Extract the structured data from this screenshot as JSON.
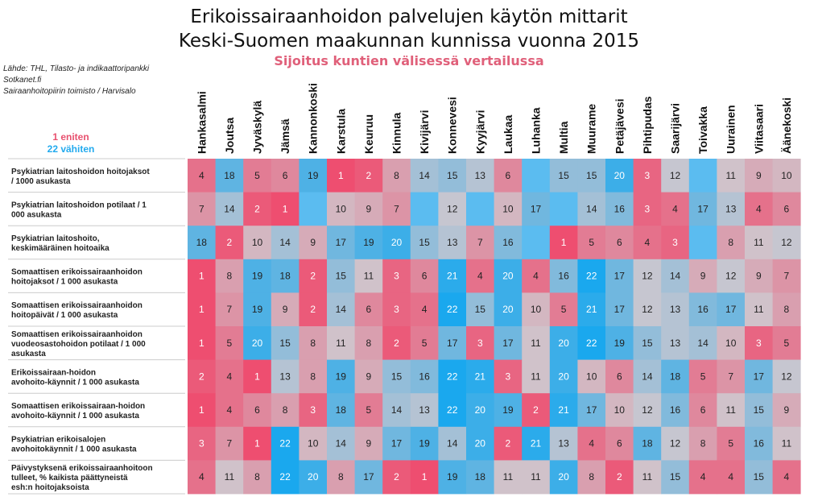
{
  "header": {
    "title_line1": "Erikoissairaanhoidon palvelujen käytön mittarit",
    "title_line2": "Keski-Suomen maakunnan kunnissa vuonna 2015",
    "subtitle": "Sijoitus kuntien välisessä vertailussa"
  },
  "source": {
    "line1": "Lähde: THL, Tilasto- ja indikaattoripankki",
    "line2": "Sotkanet.fi",
    "line3": "Sairaanhoitopiirin toimisto / Harvisalo"
  },
  "legend": {
    "most": "1 eniten",
    "least": "22 vähiten",
    "most_color": "#e8506e",
    "least_color": "#22aaee"
  },
  "chart_data": {
    "type": "heatmap",
    "columns": [
      "Hankasalmi",
      "Joutsa",
      "Jyväskylä",
      "Jämsä",
      "Kannonkoski",
      "Karstula",
      "Keuruu",
      "Kinnula",
      "Kivijärvi",
      "Konnevesi",
      "Kyyjärvi",
      "Laukaa",
      "Luhanka",
      "Multia",
      "Muurame",
      "Petäjävesi",
      "Pihtipudas",
      "Saarijärvi",
      "Toivakka",
      "Uurainen",
      "Viitasaari",
      "Äänekoski"
    ],
    "rows": [
      "Psykiatrian laitoshoidon hoitojaksot / 1000 asukasta",
      "Psykiatrian laitoshoidon potilaat / 1 000 asukasta",
      "Psykiatrian laitoshoito, keskimääräinen hoitoaika",
      "Somaattisen erikoissairaanhoidon hoitojaksot / 1 000 asukasta",
      "Somaattisen erikoissairaanhoidon hoitopäivät / 1 000 asukasta",
      "Somaattisen erikoissairaanhoidon vuodeosastohoidon potilaat / 1 000 asukasta",
      "Erikoissairaan-hoidon avohoito-käynnit / 1 000 asukasta",
      "Somaattisen erikoissairaan-hoidon avohoito-käynnit / 1 000 asukasta",
      "Psykiatrian erikoisalojen avohoitokäynnit / 1 000 asukasta",
      "Päivystyksenä erikoissairaanhoitoon tulleet, % kaikista päättyneistä esh:n hoitojaksoista"
    ],
    "values": [
      [
        4,
        18,
        5,
        6,
        19,
        1,
        2,
        8,
        14,
        15,
        13,
        6,
        null,
        15,
        15,
        20,
        3,
        12,
        null,
        11,
        9,
        10
      ],
      [
        7,
        14,
        2,
        1,
        null,
        10,
        9,
        7,
        null,
        12,
        null,
        10,
        17,
        null,
        14,
        16,
        3,
        4,
        17,
        13,
        4,
        6
      ],
      [
        18,
        2,
        10,
        14,
        9,
        17,
        19,
        20,
        15,
        13,
        7,
        16,
        null,
        1,
        5,
        6,
        4,
        3,
        null,
        8,
        11,
        12
      ],
      [
        1,
        8,
        19,
        18,
        2,
        15,
        11,
        3,
        6,
        21,
        4,
        20,
        4,
        16,
        22,
        17,
        12,
        14,
        9,
        12,
        9,
        7
      ],
      [
        1,
        7,
        19,
        9,
        2,
        14,
        6,
        3,
        4,
        22,
        15,
        20,
        10,
        5,
        21,
        17,
        12,
        13,
        16,
        17,
        11,
        8
      ],
      [
        1,
        5,
        20,
        15,
        8,
        11,
        8,
        2,
        5,
        17,
        3,
        17,
        11,
        20,
        22,
        19,
        15,
        13,
        14,
        10,
        3,
        5
      ],
      [
        2,
        4,
        1,
        13,
        8,
        19,
        9,
        15,
        16,
        22,
        21,
        3,
        11,
        20,
        10,
        6,
        14,
        18,
        5,
        7,
        17,
        12
      ],
      [
        1,
        4,
        6,
        8,
        3,
        18,
        5,
        14,
        13,
        22,
        20,
        19,
        2,
        21,
        17,
        10,
        12,
        16,
        6,
        11,
        15,
        9
      ],
      [
        3,
        7,
        1,
        22,
        10,
        14,
        9,
        17,
        19,
        14,
        20,
        2,
        21,
        13,
        4,
        6,
        18,
        12,
        8,
        5,
        16,
        11
      ],
      [
        4,
        11,
        8,
        22,
        20,
        8,
        17,
        2,
        1,
        19,
        18,
        11,
        11,
        20,
        8,
        2,
        11,
        15,
        4,
        4,
        15,
        4
      ]
    ],
    "scale_min": 1,
    "scale_max": 22,
    "empty_color": "#5bbcf0",
    "neutral_color": "#cfc8cf"
  }
}
